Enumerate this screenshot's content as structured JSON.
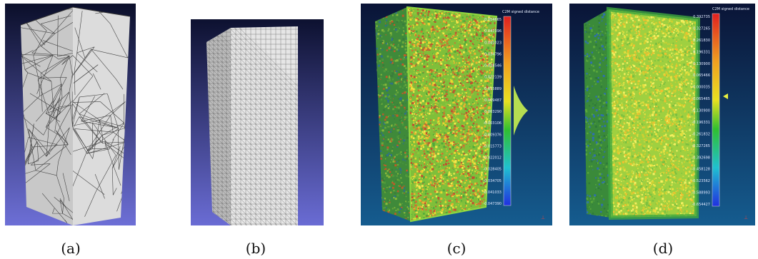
{
  "figure": {
    "captions": [
      "(a)",
      "(b)",
      "(c)",
      "(d)"
    ]
  },
  "panel_c": {
    "scalebar_title": "C2M signed distance",
    "scalebar_labels": [
      "0.054665",
      "0.047396",
      "0.041023",
      "0.034796",
      "0.028546",
      "0.022139",
      "0.015889",
      "0.009487",
      "0.003290",
      "-0.003106",
      "-0.009376",
      "-0.015773",
      "-0.022012",
      "-0.028405",
      "-0.034705",
      "-0.041033",
      "-0.047390"
    ]
  },
  "panel_d": {
    "scalebar_title": "C2M signed distance",
    "scalebar_labels": [
      "0.392735",
      "0.327265",
      "0.261830",
      "0.196331",
      "0.130900",
      "0.065466",
      "0.000035",
      "-0.065465",
      "-0.130900",
      "-0.196331",
      "-0.261832",
      "-0.327265",
      "-0.392698",
      "-0.458128",
      "-0.523562",
      "-0.588993",
      "-0.654427"
    ]
  },
  "colors": {
    "viewer_bg_top": "#0b0f2a",
    "viewer_bg_bottom": "#6d6fd6",
    "cc_bg_top": "#0a1436",
    "cc_bg_bottom": "#155c8f",
    "mesh_face": "#d9d9d9",
    "mesh_line": "#555555"
  }
}
